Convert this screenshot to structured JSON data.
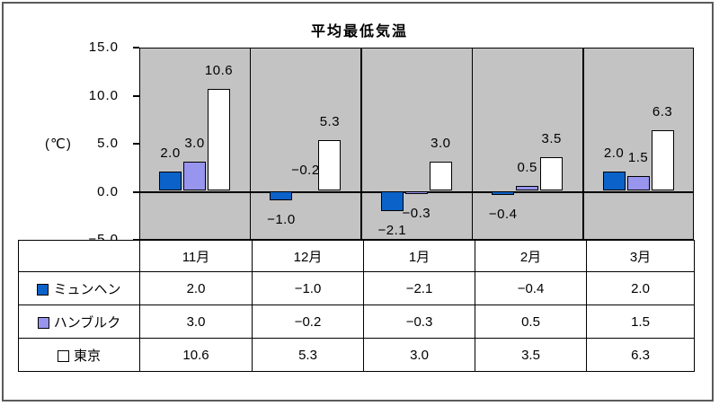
{
  "chart_data": {
    "type": "bar",
    "title": "平均最低気温",
    "ylabel": "(℃)",
    "ylim": [
      -5,
      15
    ],
    "yticks": [
      15,
      10,
      5,
      0,
      -5
    ],
    "plot_bg": "#c3c3c3",
    "grid": false,
    "legend_position": "table-left",
    "categories": [
      "11月",
      "12月",
      "1月",
      "2月",
      "3月"
    ],
    "series": [
      {
        "key": "munich",
        "name": "ミュンヘン",
        "color": "#0b62c8",
        "values": [
          2.0,
          -1.0,
          -2.1,
          -0.4,
          2.0
        ]
      },
      {
        "key": "hamburg",
        "name": "ハンブルク",
        "color": "#9895ee",
        "values": [
          3.0,
          -0.2,
          -0.3,
          0.5,
          1.5
        ]
      },
      {
        "key": "tokyo",
        "name": "東京",
        "color": "#ffffff",
        "values": [
          10.6,
          5.3,
          3.0,
          3.5,
          6.3
        ]
      }
    ]
  }
}
